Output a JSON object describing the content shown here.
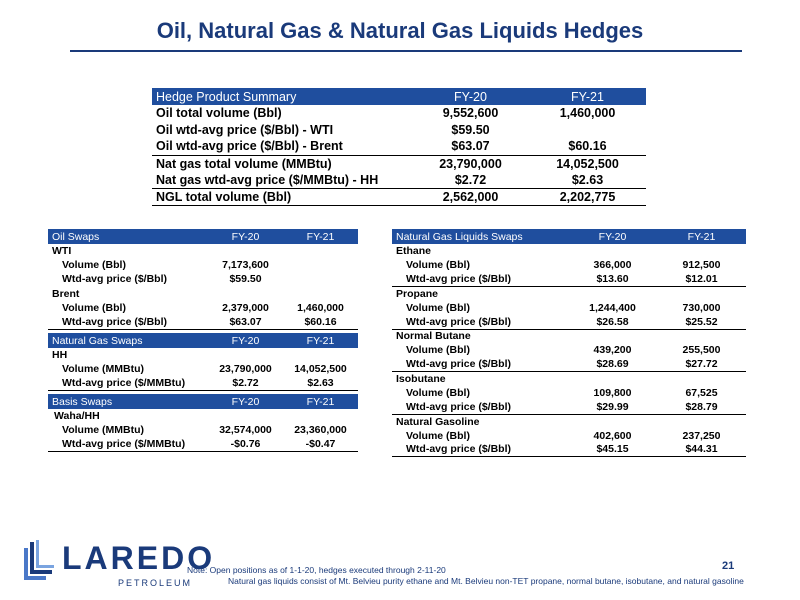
{
  "title": "Oil, Natural Gas & Natural Gas Liquids Hedges",
  "summary": {
    "headers": [
      "Hedge Product Summary",
      "FY-20",
      "FY-21"
    ],
    "rows": [
      [
        "Oil total volume (Bbl)",
        "9,552,600",
        "1,460,000"
      ],
      [
        "Oil wtd-avg price ($/Bbl) - WTI",
        "$59.50",
        ""
      ],
      [
        "Oil wtd-avg price ($/Bbl) - Brent",
        "$63.07",
        "$60.16"
      ],
      [
        "Nat gas total volume (MMBtu)",
        "23,790,000",
        "14,052,500"
      ],
      [
        "Nat gas wtd-avg price ($/MMBtu) - HH",
        "$2.72",
        "$2.63"
      ],
      [
        "NGL total volume (Bbl)",
        "2,562,000",
        "2,202,775"
      ]
    ]
  },
  "oil_swaps": {
    "headers": [
      "Oil Swaps",
      "FY-20",
      "FY-21"
    ],
    "rows": [
      [
        "WTI",
        "",
        ""
      ],
      [
        "Volume (Bbl)",
        "7,173,600",
        ""
      ],
      [
        "Wtd-avg price ($/Bbl)",
        "$59.50",
        ""
      ],
      [
        "Brent",
        "",
        ""
      ],
      [
        "Volume (Bbl)",
        "2,379,000",
        "1,460,000"
      ],
      [
        "Wtd-avg price ($/Bbl)",
        "$63.07",
        "$60.16"
      ]
    ]
  },
  "gas_swaps": {
    "headers": [
      "Natural Gas Swaps",
      "FY-20",
      "FY-21"
    ],
    "rows": [
      [
        "HH",
        "",
        ""
      ],
      [
        "Volume (MMBtu)",
        "23,790,000",
        "14,052,500"
      ],
      [
        "Wtd-avg price ($/MMBtu)",
        "$2.72",
        "$2.63"
      ]
    ]
  },
  "basis_swaps": {
    "headers": [
      "Basis Swaps",
      "FY-20",
      "FY-21"
    ],
    "rows": [
      [
        "Waha/HH",
        "",
        ""
      ],
      [
        "Volume (MMBtu)",
        "32,574,000",
        "23,360,000"
      ],
      [
        "Wtd-avg price ($/MMBtu)",
        "-$0.76",
        "-$0.47"
      ]
    ]
  },
  "ngl_swaps": {
    "headers": [
      "Natural Gas Liquids Swaps",
      "FY-20",
      "FY-21"
    ],
    "rows": [
      [
        "Ethane",
        "",
        ""
      ],
      [
        "Volume (Bbl)",
        "366,000",
        "912,500"
      ],
      [
        "Wtd-avg price ($/Bbl)",
        "$13.60",
        "$12.01"
      ],
      [
        "Propane",
        "",
        ""
      ],
      [
        "Volume (Bbl)",
        "1,244,400",
        "730,000"
      ],
      [
        "Wtd-avg price ($/Bbl)",
        "$26.58",
        "$25.52"
      ],
      [
        "Normal Butane",
        "",
        ""
      ],
      [
        "Volume (Bbl)",
        "439,200",
        "255,500"
      ],
      [
        "Wtd-avg price ($/Bbl)",
        "$28.69",
        "$27.72"
      ],
      [
        "Isobutane",
        "",
        ""
      ],
      [
        "Volume (Bbl)",
        "109,800",
        "67,525"
      ],
      [
        "Wtd-avg price ($/Bbl)",
        "$29.99",
        "$28.79"
      ],
      [
        "Natural Gasoline",
        "",
        ""
      ],
      [
        "Volume (Bbl)",
        "402,600",
        "237,250"
      ],
      [
        "Wtd-avg price ($/Bbl)",
        "$45.15",
        "$44.31"
      ]
    ]
  },
  "footer": {
    "logo_text": "LAREDO",
    "logo_sub": "PETROLEUM",
    "note_line1": "Note: Open positions as of 1-1-20, hedges executed through 2-11-20",
    "note_line2": "Natural gas liquids consist of Mt. Belvieu purity ethane and Mt. Belvieu non-TET propane, normal butane, isobutane, and natural gasoline",
    "page_number": "21"
  },
  "colors": {
    "brand_blue": "#1a3a7a",
    "header_blue": "#1f4e9e"
  }
}
